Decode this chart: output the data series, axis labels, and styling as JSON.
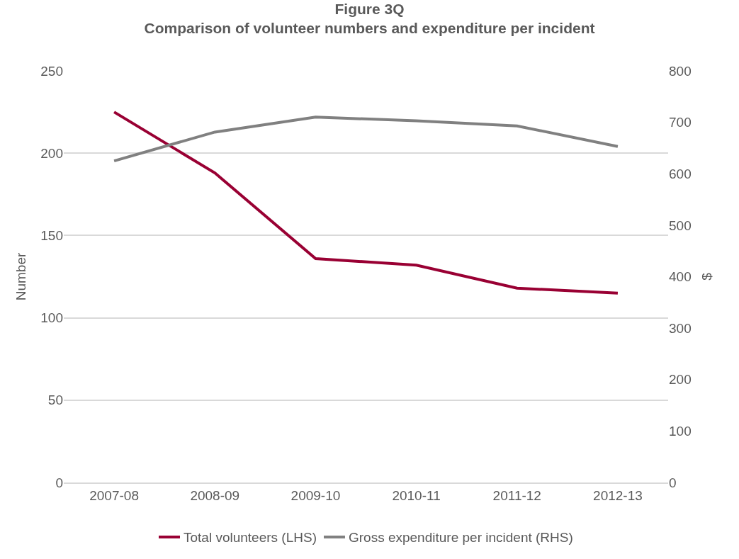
{
  "chart_data": {
    "type": "line",
    "title": "Figure 3Q",
    "subtitle": "Comparison of volunteer numbers and expenditure per incident",
    "ylabel": "Number",
    "y2label": "$",
    "categories": [
      "2007-08",
      "2008-09",
      "2009-10",
      "2010-11",
      "2011-12",
      "2012-13"
    ],
    "series": [
      {
        "name": "Total volunteers (LHS)",
        "color": "#990033",
        "values": [
          225,
          188,
          136,
          132,
          118,
          115
        ]
      },
      {
        "name": "Gross expenditure per incident (RHS)",
        "color": "#808080",
        "axis": "y2",
        "values": [
          625,
          681,
          710,
          703,
          693,
          653
        ]
      }
    ],
    "ylim": [
      0,
      250
    ],
    "yticks": [
      0,
      50,
      100,
      150,
      200,
      250
    ],
    "y2lim": [
      0,
      800
    ],
    "y2ticks": [
      0,
      100,
      200,
      300,
      400,
      500,
      600,
      700,
      800
    ],
    "grid": "y",
    "legend": "bottom",
    "marker": "none",
    "line_style": "solid"
  }
}
